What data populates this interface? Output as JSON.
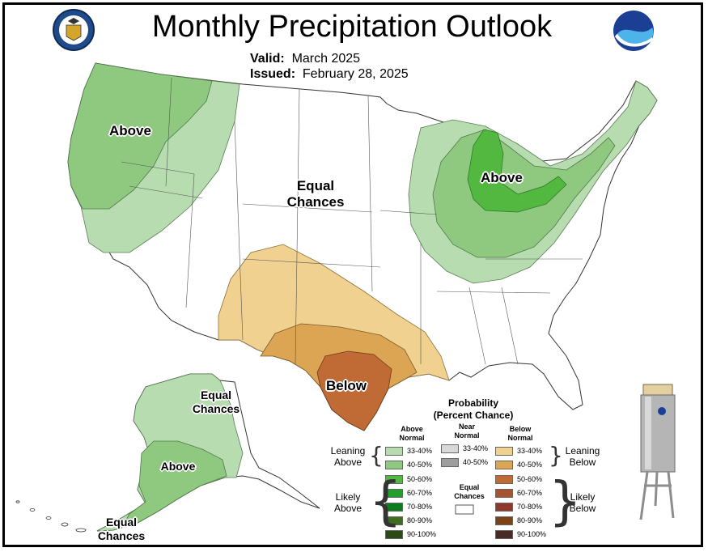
{
  "title": "Monthly Precipitation Outlook",
  "valid_label": "Valid:",
  "valid_value": "March 2025",
  "issued_label": "Issued:",
  "issued_value": "February 28, 2025",
  "logos": {
    "left": "commerce-seal-icon",
    "right": "noaa-logo-icon"
  },
  "map_labels": {
    "west": "Above",
    "central_line1": "Equal",
    "central_line2": "Chances",
    "great_lakes": "Above",
    "texas": "Below",
    "alaska_top_line1": "Equal",
    "alaska_top_line2": "Chances",
    "alaska_mid": "Above",
    "alaska_bottom_line1": "Equal",
    "alaska_bottom_line2": "Chances"
  },
  "colors": {
    "above_33_40": "#b7dcb0",
    "above_40_50": "#8ec97f",
    "above_50_60": "#53b83f",
    "above_60_70": "#22a02b",
    "above_70_80": "#0b7d1c",
    "above_80_90": "#3f6b23",
    "above_90_100": "#2b4a14",
    "below_33_40": "#f0d18f",
    "below_40_50": "#dba553",
    "below_50_60": "#c06a35",
    "below_60_70": "#a4552f",
    "below_70_80": "#8e3a2a",
    "below_80_90": "#7a4418",
    "below_90_100": "#4a2b24",
    "near_33_40": "#d8d8d8",
    "near_40_50": "#9e9e9e",
    "equal": "#ffffff"
  },
  "legend": {
    "title_line1": "Probability",
    "title_line2": "(Percent Chance)",
    "above_head_line1": "Above",
    "above_head_line2": "Normal",
    "near_head_line1": "Near",
    "near_head_line2": "Normal",
    "below_head_line1": "Below",
    "below_head_line2": "Normal",
    "ranges": [
      "33-40%",
      "40-50%",
      "50-60%",
      "60-70%",
      "70-80%",
      "80-90%",
      "90-100%"
    ],
    "near_ranges": [
      "33-40%",
      "40-50%"
    ],
    "equal_line1": "Equal",
    "equal_line2": "Chances",
    "leaning_above_line1": "Leaning",
    "leaning_above_line2": "Above",
    "likely_above_line1": "Likely",
    "likely_above_line2": "Above",
    "leaning_below_line1": "Leaning",
    "leaning_below_line2": "Below",
    "likely_below_line1": "Likely",
    "likely_below_line2": "Below"
  }
}
